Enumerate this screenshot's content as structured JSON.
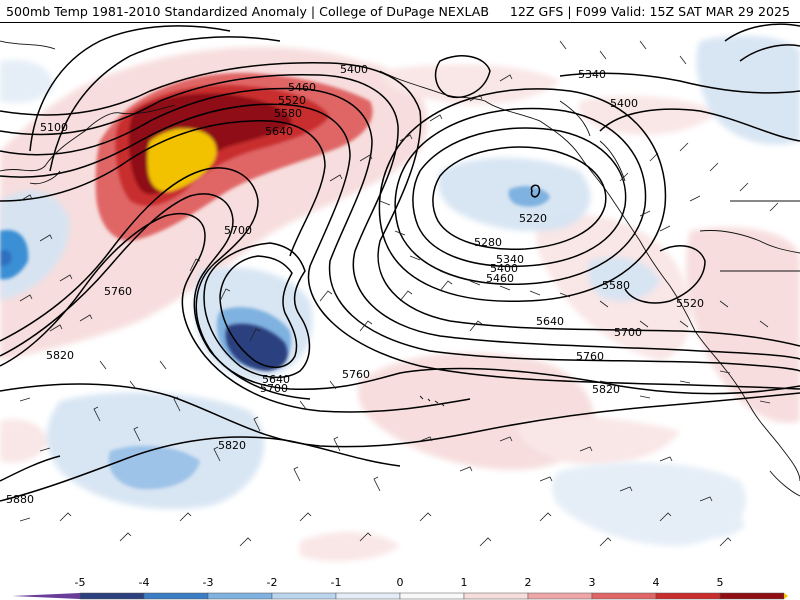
{
  "header": {
    "title_left": "500mb Temp 1981-2010 Standardized Anomaly | College of DuPage NEXLAB",
    "title_right": "12Z GFS | F099 Valid: 15Z SAT MAR 29 2025"
  },
  "contour_labels": [
    "5400",
    "5460",
    "5520",
    "5580",
    "5640",
    "5100",
    "5700",
    "5760",
    "5820",
    "5880",
    "5340",
    "5400",
    "5220",
    "5280",
    "5340",
    "5400",
    "5460",
    "5580",
    "5520",
    "5640",
    "5700",
    "5760",
    "5820",
    "5640",
    "5700",
    "5760",
    "5820"
  ],
  "colorbar": {
    "ticks": [
      "-5",
      "-4",
      "-3",
      "-2",
      "-1",
      "0",
      "1",
      "2",
      "3",
      "4",
      "5"
    ],
    "colors": [
      "#6a3d9a",
      "#2c3f7f",
      "#3b7dc4",
      "#7fb2e0",
      "#bcd5ee",
      "#e4edf7",
      "#f8f8f8",
      "#f7dcdc",
      "#eea6a6",
      "#e06666",
      "#c92d2d",
      "#8e0e14",
      "#f2c200"
    ]
  },
  "layers": {
    "anomaly_fill": "standardized-anomaly",
    "height_contours": "500mb-height",
    "wind_barbs": "wind-barbs",
    "coastlines": "coastlines"
  }
}
